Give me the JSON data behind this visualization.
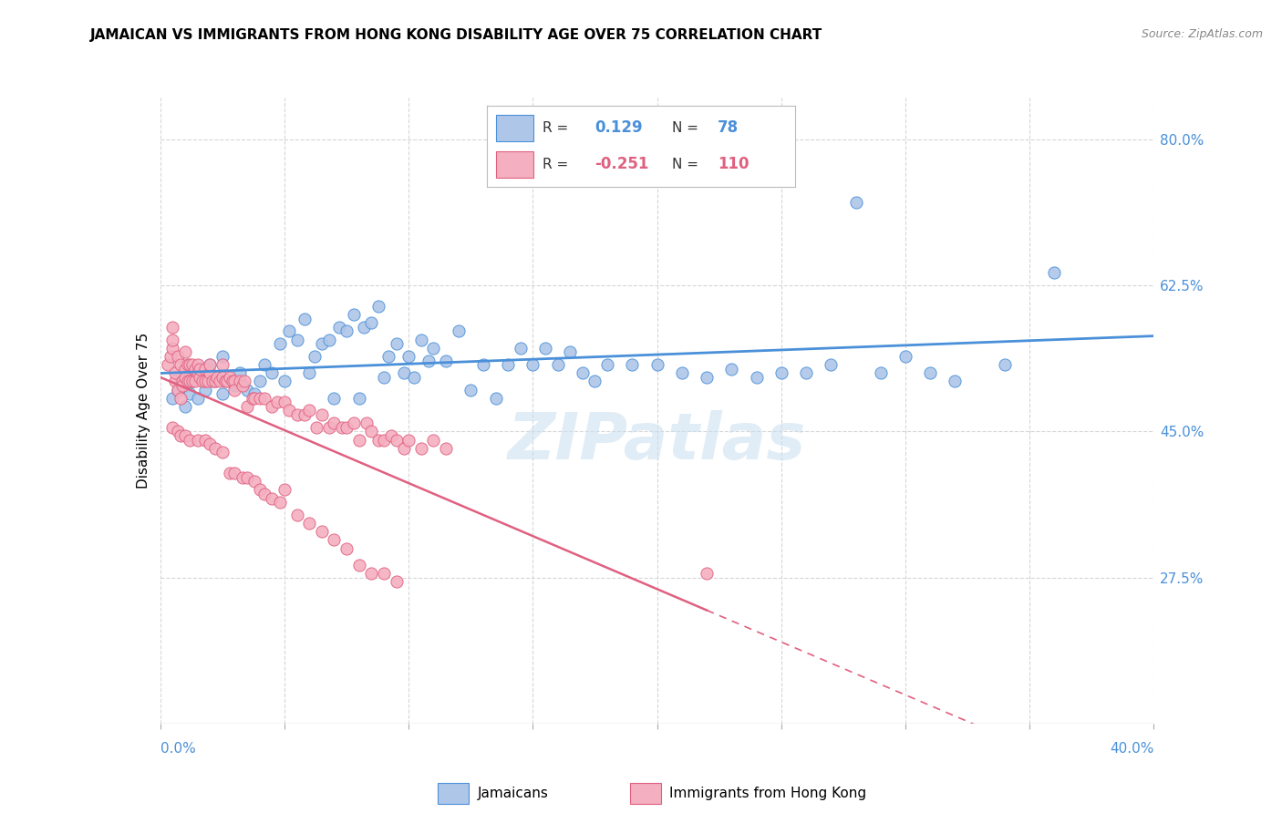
{
  "title": "JAMAICAN VS IMMIGRANTS FROM HONG KONG DISABILITY AGE OVER 75 CORRELATION CHART",
  "source": "Source: ZipAtlas.com",
  "ylabel_label": "Disability Age Over 75",
  "ytick_labels": [
    "27.5%",
    "45.0%",
    "62.5%",
    "80.0%"
  ],
  "ytick_values": [
    0.275,
    0.45,
    0.625,
    0.8
  ],
  "xtick_values": [
    0.0,
    0.05,
    0.1,
    0.15,
    0.2,
    0.25,
    0.3,
    0.35,
    0.4
  ],
  "xlim": [
    0.0,
    0.4
  ],
  "ylim": [
    0.1,
    0.85
  ],
  "blue_color": "#aec6e8",
  "pink_color": "#f4afc0",
  "blue_line_color": "#4a90d9",
  "pink_line_color": "#e06080",
  "grid_color": "#cccccc",
  "background_color": "#ffffff",
  "jamaicans_x": [
    0.005,
    0.007,
    0.008,
    0.01,
    0.01,
    0.012,
    0.013,
    0.015,
    0.015,
    0.018,
    0.02,
    0.022,
    0.025,
    0.025,
    0.028,
    0.03,
    0.032,
    0.035,
    0.038,
    0.04,
    0.042,
    0.045,
    0.048,
    0.05,
    0.052,
    0.055,
    0.058,
    0.06,
    0.062,
    0.065,
    0.068,
    0.07,
    0.072,
    0.075,
    0.078,
    0.08,
    0.082,
    0.085,
    0.088,
    0.09,
    0.092,
    0.095,
    0.098,
    0.1,
    0.102,
    0.105,
    0.108,
    0.11,
    0.115,
    0.12,
    0.125,
    0.13,
    0.135,
    0.14,
    0.145,
    0.15,
    0.155,
    0.16,
    0.165,
    0.17,
    0.175,
    0.18,
    0.19,
    0.2,
    0.21,
    0.22,
    0.23,
    0.24,
    0.25,
    0.26,
    0.27,
    0.28,
    0.29,
    0.3,
    0.31,
    0.32,
    0.34,
    0.36
  ],
  "jamaicans_y": [
    0.49,
    0.5,
    0.51,
    0.48,
    0.505,
    0.495,
    0.51,
    0.52,
    0.49,
    0.5,
    0.53,
    0.51,
    0.54,
    0.495,
    0.51,
    0.505,
    0.52,
    0.5,
    0.495,
    0.51,
    0.53,
    0.52,
    0.555,
    0.51,
    0.57,
    0.56,
    0.585,
    0.52,
    0.54,
    0.555,
    0.56,
    0.49,
    0.575,
    0.57,
    0.59,
    0.49,
    0.575,
    0.58,
    0.6,
    0.515,
    0.54,
    0.555,
    0.52,
    0.54,
    0.515,
    0.56,
    0.535,
    0.55,
    0.535,
    0.57,
    0.5,
    0.53,
    0.49,
    0.53,
    0.55,
    0.53,
    0.55,
    0.53,
    0.545,
    0.52,
    0.51,
    0.53,
    0.53,
    0.53,
    0.52,
    0.515,
    0.525,
    0.515,
    0.52,
    0.52,
    0.53,
    0.725,
    0.52,
    0.54,
    0.52,
    0.51,
    0.53,
    0.64
  ],
  "hk_x": [
    0.003,
    0.004,
    0.005,
    0.005,
    0.005,
    0.006,
    0.006,
    0.007,
    0.007,
    0.008,
    0.008,
    0.009,
    0.009,
    0.01,
    0.01,
    0.01,
    0.011,
    0.011,
    0.012,
    0.012,
    0.013,
    0.013,
    0.014,
    0.014,
    0.015,
    0.015,
    0.016,
    0.016,
    0.017,
    0.018,
    0.018,
    0.019,
    0.02,
    0.02,
    0.021,
    0.022,
    0.023,
    0.024,
    0.025,
    0.025,
    0.026,
    0.027,
    0.028,
    0.029,
    0.03,
    0.03,
    0.032,
    0.033,
    0.034,
    0.035,
    0.037,
    0.038,
    0.04,
    0.042,
    0.045,
    0.047,
    0.05,
    0.052,
    0.055,
    0.058,
    0.06,
    0.063,
    0.065,
    0.068,
    0.07,
    0.073,
    0.075,
    0.078,
    0.08,
    0.083,
    0.085,
    0.088,
    0.09,
    0.093,
    0.095,
    0.098,
    0.1,
    0.105,
    0.11,
    0.115,
    0.005,
    0.007,
    0.008,
    0.01,
    0.012,
    0.015,
    0.018,
    0.02,
    0.022,
    0.025,
    0.028,
    0.03,
    0.033,
    0.035,
    0.038,
    0.04,
    0.042,
    0.045,
    0.048,
    0.05,
    0.055,
    0.06,
    0.065,
    0.07,
    0.075,
    0.08,
    0.085,
    0.09,
    0.095,
    0.22
  ],
  "hk_y": [
    0.53,
    0.54,
    0.55,
    0.56,
    0.575,
    0.51,
    0.52,
    0.5,
    0.54,
    0.49,
    0.53,
    0.51,
    0.505,
    0.525,
    0.515,
    0.545,
    0.51,
    0.53,
    0.51,
    0.53,
    0.51,
    0.53,
    0.51,
    0.525,
    0.52,
    0.53,
    0.515,
    0.525,
    0.51,
    0.51,
    0.525,
    0.51,
    0.52,
    0.53,
    0.51,
    0.51,
    0.515,
    0.51,
    0.515,
    0.53,
    0.51,
    0.51,
    0.515,
    0.51,
    0.51,
    0.5,
    0.51,
    0.505,
    0.51,
    0.48,
    0.49,
    0.49,
    0.49,
    0.49,
    0.48,
    0.485,
    0.485,
    0.475,
    0.47,
    0.47,
    0.475,
    0.455,
    0.47,
    0.455,
    0.46,
    0.455,
    0.455,
    0.46,
    0.44,
    0.46,
    0.45,
    0.44,
    0.44,
    0.445,
    0.44,
    0.43,
    0.44,
    0.43,
    0.44,
    0.43,
    0.455,
    0.45,
    0.445,
    0.445,
    0.44,
    0.44,
    0.44,
    0.435,
    0.43,
    0.425,
    0.4,
    0.4,
    0.395,
    0.395,
    0.39,
    0.38,
    0.375,
    0.37,
    0.365,
    0.38,
    0.35,
    0.34,
    0.33,
    0.32,
    0.31,
    0.29,
    0.28,
    0.28,
    0.27,
    0.28
  ]
}
